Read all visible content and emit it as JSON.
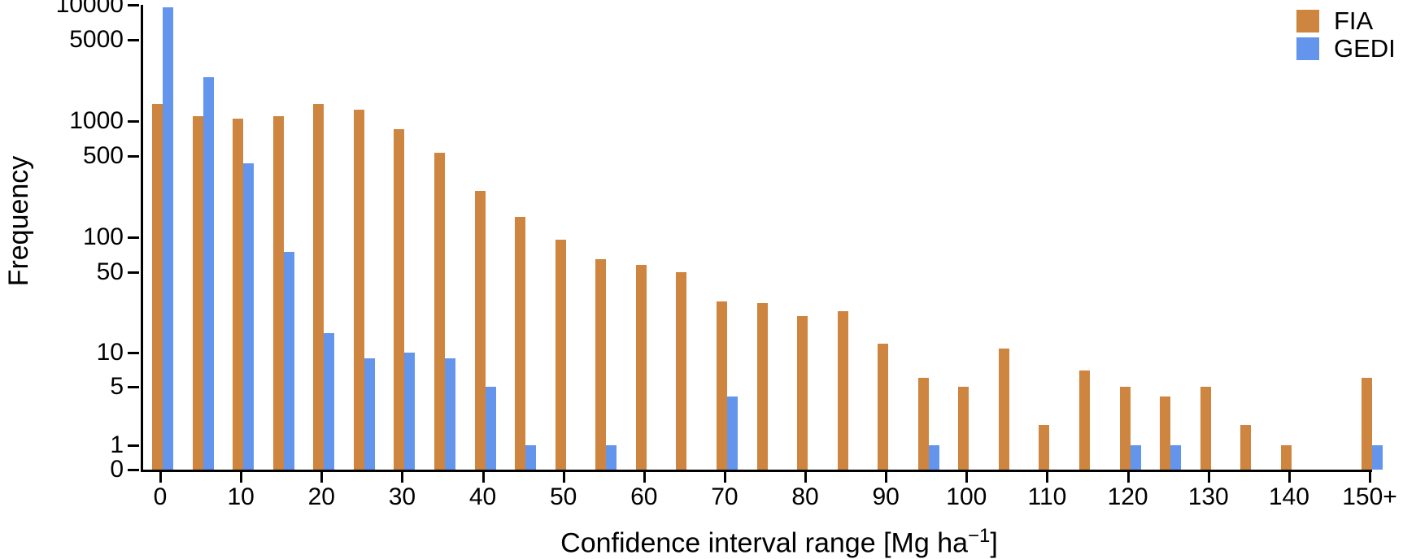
{
  "chart_data": {
    "type": "bar",
    "title": "",
    "xlabel_parts": {
      "main": "Confidence interval range [Mg ha",
      "superscript": "−1",
      "close": "]"
    },
    "ylabel": "Frequency",
    "categories": [
      "0",
      "5",
      "10",
      "15",
      "20",
      "25",
      "30",
      "35",
      "40",
      "45",
      "50",
      "55",
      "60",
      "65",
      "70",
      "75",
      "80",
      "85",
      "90",
      "95",
      "100",
      "105",
      "110",
      "115",
      "120",
      "125",
      "130",
      "135",
      "140",
      "145",
      "150+"
    ],
    "x_tick_labels": [
      "0",
      "10",
      "20",
      "30",
      "40",
      "50",
      "60",
      "70",
      "80",
      "90",
      "100",
      "110",
      "120",
      "130",
      "140",
      "150+"
    ],
    "series": [
      {
        "name": "FIA",
        "color": "#CD853F",
        "values": [
          1400,
          1100,
          1050,
          1100,
          1400,
          1250,
          850,
          530,
          250,
          150,
          95,
          65,
          58,
          50,
          28,
          27,
          21,
          23,
          12,
          6,
          5,
          11,
          2,
          7,
          5,
          4,
          5,
          2,
          1,
          0,
          6
        ]
      },
      {
        "name": "GEDI",
        "color": "#6495ED",
        "values": [
          9600,
          2400,
          430,
          75,
          15,
          9,
          10,
          9,
          5,
          1,
          0,
          1,
          0,
          0,
          4,
          0,
          0,
          0,
          0,
          1,
          0,
          0,
          0,
          0,
          1,
          1,
          0,
          0,
          0,
          0,
          1
        ]
      }
    ],
    "y_axis": {
      "scale": "pseudo-log (asinh, sigma=1)",
      "ticks": [
        0,
        1,
        5,
        10,
        50,
        100,
        500,
        1000,
        5000,
        10000
      ],
      "tick_labels": [
        "0",
        "1",
        "5",
        "10",
        "50",
        "100",
        "500",
        "1000",
        "5000",
        "10000"
      ],
      "range": [
        0,
        10000
      ]
    },
    "legend_position": "top-right",
    "grid": false,
    "background_color": "#FFFFFF",
    "axis_color": "#000000"
  }
}
